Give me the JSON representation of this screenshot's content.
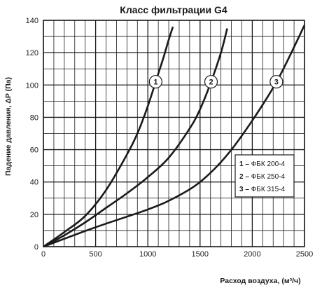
{
  "chart_data": {
    "type": "line",
    "title": "Класс  фильтрации G4",
    "xlabel": "Расход воздуха, (м³/ч)",
    "ylabel": "Падение давления, ΔP (Па)",
    "xlim": [
      0,
      2500
    ],
    "ylim": [
      0,
      140
    ],
    "xticks": [
      "0",
      "500",
      "1000",
      "1500",
      "2000",
      "2500"
    ],
    "yticks": [
      "0",
      "20",
      "40",
      "60",
      "80",
      "100",
      "120",
      "140"
    ],
    "grid": true,
    "legend_position": "right",
    "series": [
      {
        "name": "ФБК 200-4",
        "label": "1",
        "x": [
          0,
          200,
          400,
          600,
          800,
          900,
          1000,
          1100,
          1150,
          1200,
          1240
        ],
        "y": [
          0,
          9,
          19,
          35,
          57,
          70,
          87,
          107,
          117,
          128,
          136
        ]
      },
      {
        "name": "ФБК 250-4",
        "label": "2",
        "x": [
          0,
          200,
          400,
          600,
          800,
          1000,
          1200,
          1400,
          1500,
          1600,
          1700,
          1760
        ],
        "y": [
          0,
          7,
          15,
          24,
          33,
          43,
          55,
          73,
          85,
          101,
          120,
          135
        ]
      },
      {
        "name": "ФБК 315-4",
        "label": "3",
        "x": [
          0,
          500,
          1000,
          1250,
          1500,
          1750,
          2000,
          2250,
          2500
        ],
        "y": [
          0,
          12,
          23,
          30,
          40,
          56,
          78,
          104,
          137
        ]
      }
    ]
  }
}
